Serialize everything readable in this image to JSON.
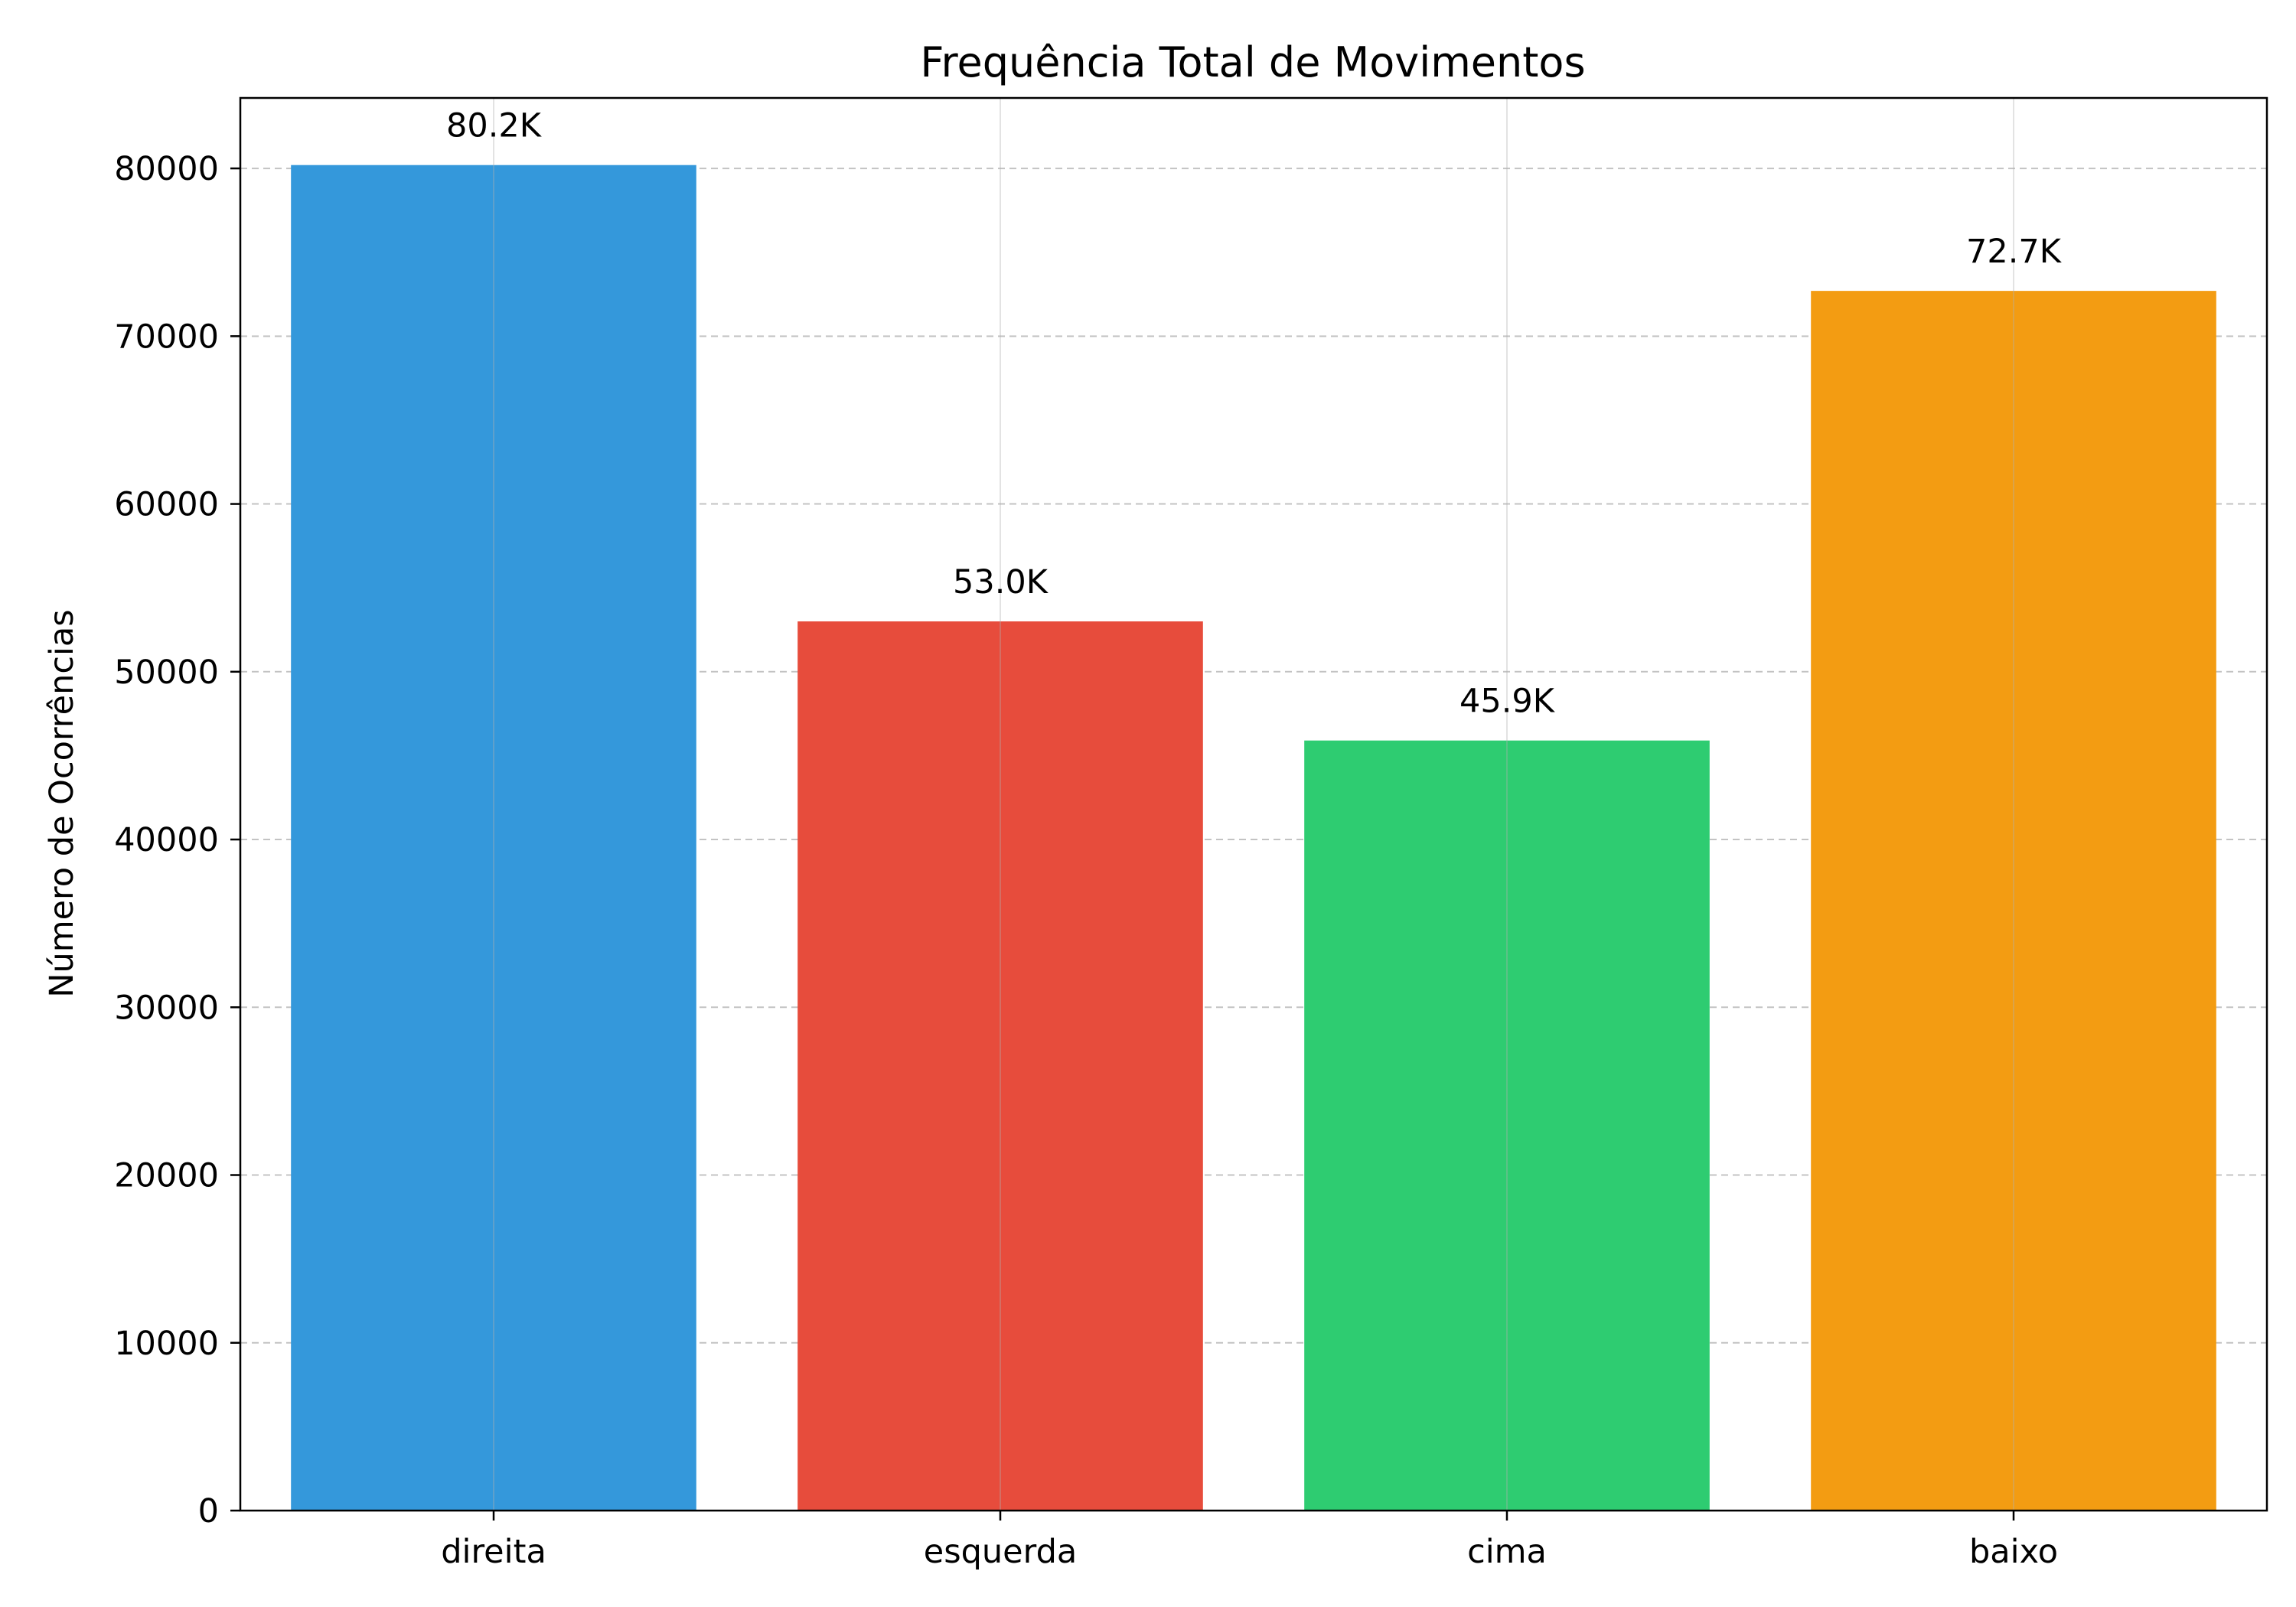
{
  "chart_data": {
    "type": "bar",
    "title": "Frequência Total de Movimentos",
    "xlabel": "",
    "ylabel": "Número de Ocorrências",
    "categories": [
      "direita",
      "esquerda",
      "cima",
      "baixo"
    ],
    "values": [
      80200,
      53000,
      45900,
      72700
    ],
    "data_labels": [
      "80.2K",
      "53.0K",
      "45.9K",
      "72.7K"
    ],
    "colors": [
      "#3498db",
      "#e74c3c",
      "#2ecc71",
      "#f39c12"
    ],
    "ylim": [
      0,
      84200
    ],
    "yticks": [
      0,
      10000,
      20000,
      30000,
      40000,
      50000,
      60000,
      70000,
      80000
    ],
    "ytick_labels": [
      "0",
      "10000",
      "20000",
      "30000",
      "40000",
      "50000",
      "60000",
      "70000",
      "80000"
    ],
    "grid": true,
    "legend": "none"
  }
}
